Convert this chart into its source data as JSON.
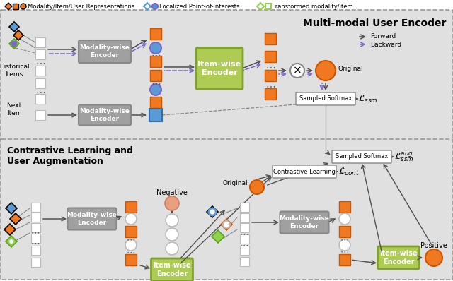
{
  "colors": {
    "orange": "#F07820",
    "blue": "#5B9BD5",
    "green": "#92D050",
    "light_green": "#AECC53",
    "gray_encoder": "#A0A0A0",
    "bg": "#E0E0E0",
    "purple": "#7B68C8",
    "white": "#FFFFFF",
    "black": "#000000",
    "arrow_dark": "#505050",
    "orange_circle_neg": "#E8A080"
  },
  "title_top": "Multi-modal User Encoder",
  "title_bottom": "Contrastive Learning and\nUser Augmentation",
  "forward_label": "Forward",
  "backward_label": "Backward"
}
